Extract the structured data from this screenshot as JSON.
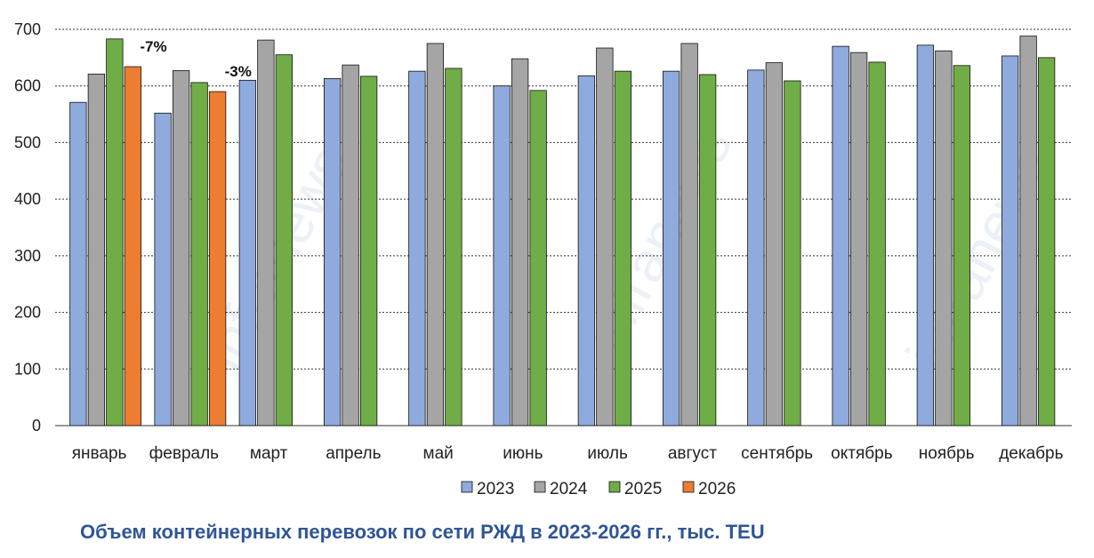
{
  "caption": "Объем контейнерных перевозок по сети РЖД в 2023-2026 гг., тыс. TEU",
  "watermark_text": "infranews",
  "chart_data": {
    "type": "bar",
    "title": "",
    "xlabel": "",
    "ylabel": "",
    "ylim": [
      0,
      700
    ],
    "yticks": [
      0,
      100,
      200,
      300,
      400,
      500,
      600,
      700
    ],
    "grid": "horizontal dashed",
    "legend_position": "bottom",
    "categories": [
      "январь",
      "февраль",
      "март",
      "апрель",
      "май",
      "июнь",
      "июль",
      "август",
      "сентябрь",
      "октябрь",
      "ноябрь",
      "декабрь"
    ],
    "series": [
      {
        "name": "2023",
        "color": "#8faadc",
        "values": [
          571,
          552,
          610,
          613,
          626,
          600,
          618,
          626,
          628,
          670,
          672,
          653
        ]
      },
      {
        "name": "2024",
        "color": "#a5a5a5",
        "values": [
          621,
          627,
          681,
          637,
          675,
          648,
          667,
          675,
          641,
          659,
          662,
          688
        ]
      },
      {
        "name": "2025",
        "color": "#70ad47",
        "values": [
          683,
          606,
          655,
          617,
          631,
          592,
          626,
          620,
          609,
          642,
          636,
          650
        ]
      },
      {
        "name": "2026",
        "color": "#ed7d31",
        "values": [
          634,
          590,
          null,
          null,
          null,
          null,
          null,
          null,
          null,
          null,
          null,
          null
        ]
      }
    ],
    "annotations": [
      {
        "category": "январь",
        "series": "2026",
        "text": "-7%"
      },
      {
        "category": "февраль",
        "series": "2026",
        "text": "-3%"
      }
    ]
  }
}
